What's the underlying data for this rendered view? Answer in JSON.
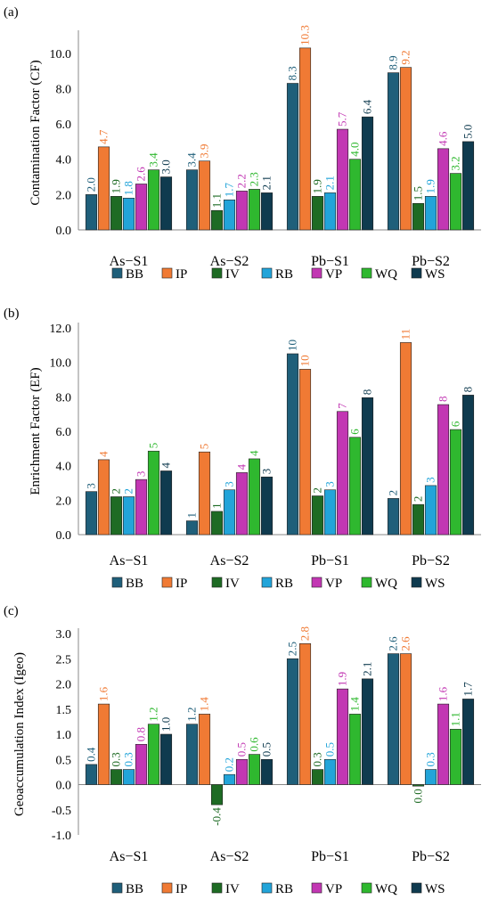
{
  "colors": {
    "BB": "#1f5f7a",
    "IP": "#f07a34",
    "IV": "#1e6b24",
    "RB": "#22a4d9",
    "VP": "#c237b3",
    "WQ": "#2fb82f",
    "WS": "#0f3b4f"
  },
  "chart_data": [
    {
      "type": "bar",
      "panel": "(a)",
      "ylabel": "Contamination Factor (CF)",
      "ylim": [
        0,
        11
      ],
      "yticks": [
        "0.0",
        "2.0",
        "4.0",
        "6.0",
        "8.0",
        "10.0"
      ],
      "categories": [
        "As−S1",
        "As−S2",
        "Pb−S1",
        "Pb−S2"
      ],
      "series": [
        {
          "name": "BB",
          "values": [
            2.0,
            3.4,
            8.3,
            8.9
          ],
          "labels": [
            "2.0",
            "3.4",
            "8.3",
            "8.9"
          ]
        },
        {
          "name": "IP",
          "values": [
            4.7,
            3.9,
            10.3,
            9.2
          ],
          "labels": [
            "4.7",
            "3.9",
            "10.3",
            "9.2"
          ]
        },
        {
          "name": "IV",
          "values": [
            1.9,
            1.1,
            1.9,
            1.5
          ],
          "labels": [
            "1.9",
            "1.1",
            "1.9",
            "1.5"
          ]
        },
        {
          "name": "RB",
          "values": [
            1.8,
            1.7,
            2.1,
            1.9
          ],
          "labels": [
            "1.8",
            "1.7",
            "2.1",
            "1.9"
          ]
        },
        {
          "name": "VP",
          "values": [
            2.6,
            2.2,
            5.7,
            4.6
          ],
          "labels": [
            "2.6",
            "2.2",
            "5.7",
            "4.6"
          ]
        },
        {
          "name": "WQ",
          "values": [
            3.4,
            2.3,
            4.0,
            3.2
          ],
          "labels": [
            "3.4",
            "2.3",
            "4.0",
            "3.2"
          ]
        },
        {
          "name": "WS",
          "values": [
            3.0,
            2.1,
            6.4,
            5.0
          ],
          "labels": [
            "3.0",
            "2.1",
            "6.4",
            "5.0"
          ]
        }
      ]
    },
    {
      "type": "bar",
      "panel": "(b)",
      "ylabel": "Enrichment Factor (EF)",
      "ylim": [
        0,
        12
      ],
      "yticks": [
        "0.0",
        "2.0",
        "4.0",
        "6.0",
        "8.0",
        "10.0",
        "12.0"
      ],
      "categories": [
        "As−S1",
        "As−S2",
        "Pb−S1",
        "Pb−S2"
      ],
      "series": [
        {
          "name": "BB",
          "values": [
            2.5,
            0.8,
            10.5,
            2.1
          ],
          "labels": [
            "3",
            "1",
            "10",
            "2"
          ]
        },
        {
          "name": "IP",
          "values": [
            4.35,
            4.8,
            9.6,
            11.15
          ],
          "labels": [
            "4",
            "5",
            "10",
            "11"
          ]
        },
        {
          "name": "IV",
          "values": [
            2.2,
            1.35,
            2.25,
            1.75
          ],
          "labels": [
            "2",
            "1",
            "2",
            "2"
          ]
        },
        {
          "name": "RB",
          "values": [
            2.2,
            2.6,
            2.6,
            2.85
          ],
          "labels": [
            "2",
            "3",
            "3",
            "3"
          ]
        },
        {
          "name": "VP",
          "values": [
            3.2,
            3.6,
            7.15,
            7.55
          ],
          "labels": [
            "3",
            "4",
            "7",
            "8"
          ]
        },
        {
          "name": "WQ",
          "values": [
            4.85,
            4.4,
            5.65,
            6.1
          ],
          "labels": [
            "5",
            "4",
            "6",
            "6"
          ]
        },
        {
          "name": "WS",
          "values": [
            3.7,
            3.35,
            7.95,
            8.1
          ],
          "labels": [
            "4",
            "3",
            "8",
            "8"
          ]
        }
      ]
    },
    {
      "type": "bar",
      "panel": "(c)",
      "ylabel": "Geoaccumulation Index (Igeo)",
      "ylim": [
        -1,
        3
      ],
      "yticks": [
        "-1.0",
        "-0.5",
        "0.0",
        "0.5",
        "1.0",
        "1.5",
        "2.0",
        "2.5",
        "3.0"
      ],
      "categories": [
        "As−S1",
        "As−S2",
        "Pb−S1",
        "Pb−S2"
      ],
      "series": [
        {
          "name": "BB",
          "values": [
            0.4,
            1.2,
            2.5,
            2.6
          ],
          "labels": [
            "0.4",
            "1.2",
            "2.5",
            "2.6"
          ]
        },
        {
          "name": "IP",
          "values": [
            1.6,
            1.4,
            2.8,
            2.6
          ],
          "labels": [
            "1.6",
            "1.4",
            "2.8",
            "2.6"
          ]
        },
        {
          "name": "IV",
          "values": [
            0.3,
            -0.4,
            0.3,
            -0.03
          ],
          "labels": [
            "0.3",
            "-0.4",
            "0.3",
            "0.0"
          ]
        },
        {
          "name": "RB",
          "values": [
            0.3,
            0.2,
            0.5,
            0.3
          ],
          "labels": [
            "0.3",
            "0.2",
            "0.5",
            "0.3"
          ]
        },
        {
          "name": "VP",
          "values": [
            0.8,
            0.5,
            1.9,
            1.6
          ],
          "labels": [
            "0.8",
            "0.5",
            "1.9",
            "1.6"
          ]
        },
        {
          "name": "WQ",
          "values": [
            1.2,
            0.6,
            1.4,
            1.1
          ],
          "labels": [
            "1.2",
            "0.6",
            "1.4",
            "1.1"
          ]
        },
        {
          "name": "WS",
          "values": [
            1.0,
            0.5,
            2.1,
            1.7
          ],
          "labels": [
            "1.0",
            "0.5",
            "2.1",
            "1.7"
          ]
        }
      ]
    }
  ]
}
